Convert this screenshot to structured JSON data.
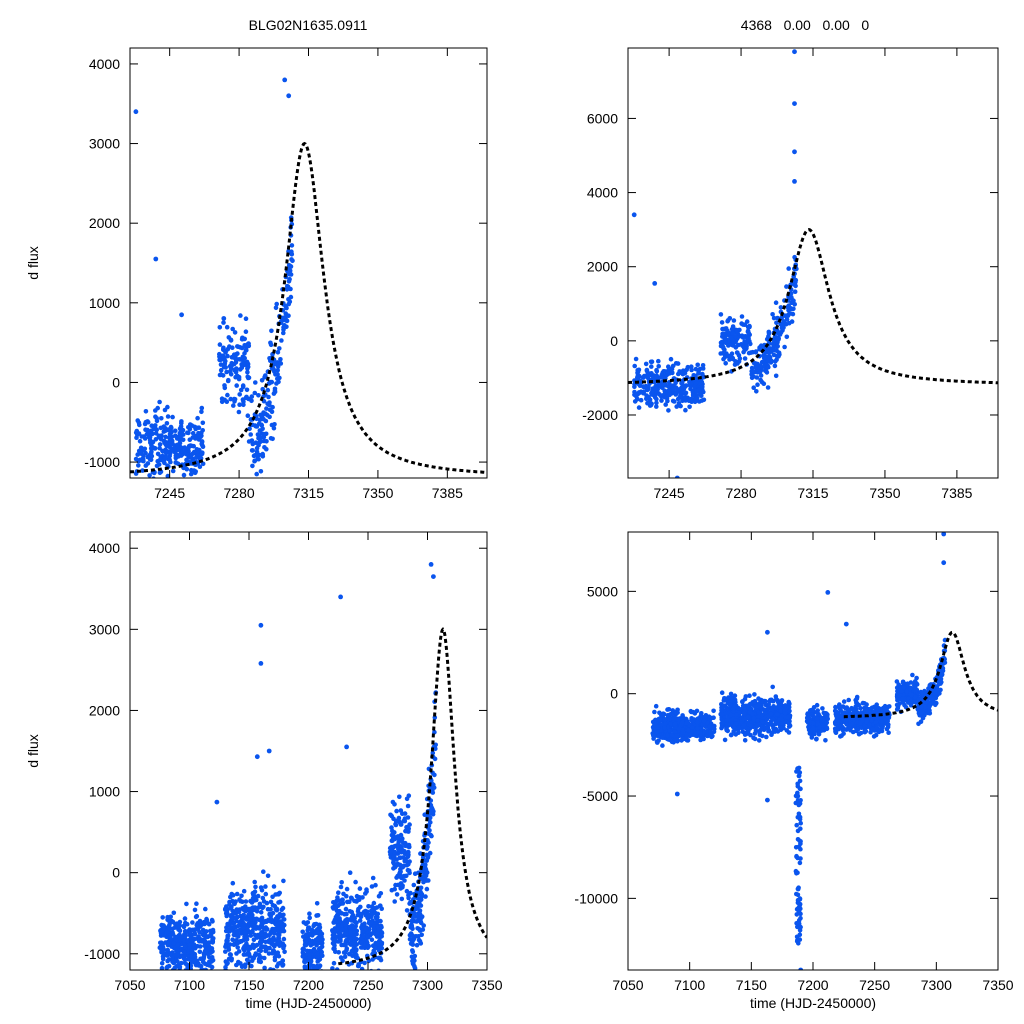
{
  "figure": {
    "title_left": "BLG02N1635.0911",
    "title_right": "4368   0.00   0.00   0"
  },
  "chart_data": [
    {
      "name": "top-left",
      "type": "scatter",
      "xlabel": "",
      "ylabel": "d flux",
      "xlim": [
        7225,
        7405
      ],
      "ylim": [
        -1200,
        4200
      ],
      "xticks": [
        7245,
        7280,
        7315,
        7350,
        7385
      ],
      "yticks": [
        -1000,
        0,
        1000,
        2000,
        3000,
        4000
      ],
      "model": {
        "t0": 7313,
        "sigma": 11.5,
        "width": 12,
        "amp": 4200,
        "base": -1200,
        "t_start": 7225,
        "t_end": 7405
      },
      "observations": [
        {
          "t": 7228,
          "flux": 3400
        },
        {
          "t": 7238,
          "flux": 1550
        },
        {
          "t": 7251,
          "flux": 850
        },
        {
          "t": 7303,
          "flux": 3800
        },
        {
          "t": 7305,
          "flux": 3600
        }
      ],
      "seasons": [
        {
          "t1": 7228,
          "t2": 7262,
          "flux": -800,
          "spread": 400
        },
        {
          "t1": 7270,
          "t2": 7293,
          "flux": 200,
          "spread": 550
        },
        {
          "t1": 7293,
          "t2": 7307,
          "flux": 1800,
          "spread": 600
        }
      ]
    },
    {
      "name": "top-right",
      "type": "scatter",
      "xlabel": "",
      "ylabel": "",
      "xlim": [
        7225,
        7405
      ],
      "ylim": [
        -3700,
        7900
      ],
      "xticks": [
        7245,
        7280,
        7315,
        7350,
        7385
      ],
      "yticks": [
        -2000,
        0,
        2000,
        4000,
        6000
      ],
      "model": {
        "t0": 7313,
        "sigma": 11.5,
        "width": 12,
        "amp": 4200,
        "base": -1200,
        "t_start": 7225,
        "t_end": 7405
      },
      "observations": [
        {
          "t": 7228,
          "flux": 3400
        },
        {
          "t": 7238,
          "flux": 1550
        },
        {
          "t": 7306,
          "flux": 7800
        },
        {
          "t": 7306,
          "flux": 6400
        },
        {
          "t": 7306,
          "flux": 5100
        },
        {
          "t": 7306,
          "flux": 4300
        },
        {
          "t": 7249,
          "flux": -3700
        }
      ],
      "seasons": [
        {
          "t1": 7228,
          "t2": 7262,
          "flux": -1200,
          "spread": 550
        },
        {
          "t1": 7270,
          "t2": 7293,
          "flux": 0,
          "spread": 600
        },
        {
          "t1": 7293,
          "t2": 7307,
          "flux": 1800,
          "spread": 700
        }
      ]
    },
    {
      "name": "bottom-left",
      "type": "scatter",
      "xlabel": "time (HJD-2450000)",
      "ylabel": "d flux",
      "xlim": [
        7050,
        7350
      ],
      "ylim": [
        -1200,
        4200
      ],
      "xticks": [
        7050,
        7100,
        7150,
        7200,
        7250,
        7300,
        7350
      ],
      "yticks": [
        -1000,
        0,
        1000,
        2000,
        3000,
        4000
      ],
      "model": {
        "t0": 7313,
        "sigma": 11.5,
        "width": 12,
        "amp": 4200,
        "base": -1200,
        "t_start": 7225,
        "t_end": 7350
      },
      "observations": [
        {
          "t": 7160,
          "flux": 3050
        },
        {
          "t": 7160,
          "flux": 2580
        },
        {
          "t": 7227,
          "flux": 3400
        },
        {
          "t": 7157,
          "flux": 1430
        },
        {
          "t": 7167,
          "flux": 1500
        },
        {
          "t": 7123,
          "flux": 870
        },
        {
          "t": 7232,
          "flux": 1550
        },
        {
          "t": 7303,
          "flux": 3800
        },
        {
          "t": 7305,
          "flux": 3650
        }
      ],
      "seasons": [
        {
          "t1": 7075,
          "t2": 7120,
          "flux": -900,
          "spread": 350
        },
        {
          "t1": 7130,
          "t2": 7180,
          "flux": -700,
          "spread": 500
        },
        {
          "t1": 7195,
          "t2": 7212,
          "flux": -900,
          "spread": 350
        },
        {
          "t1": 7220,
          "t2": 7262,
          "flux": -700,
          "spread": 450
        },
        {
          "t1": 7268,
          "t2": 7293,
          "flux": 300,
          "spread": 550
        },
        {
          "t1": 7293,
          "t2": 7307,
          "flux": 1800,
          "spread": 650
        }
      ]
    },
    {
      "name": "bottom-right",
      "type": "scatter",
      "xlabel": "time (HJD-2450000)",
      "ylabel": "",
      "xlim": [
        7050,
        7350
      ],
      "ylim": [
        -13500,
        7900
      ],
      "xticks": [
        7050,
        7100,
        7150,
        7200,
        7250,
        7300,
        7350
      ],
      "yticks": [
        -10000,
        -5000,
        0,
        5000
      ],
      "model": {
        "t0": 7313,
        "sigma": 11.5,
        "width": 12,
        "amp": 4200,
        "base": -1200,
        "t_start": 7225,
        "t_end": 7350
      },
      "observations": [
        {
          "t": 7163,
          "flux": 3000
        },
        {
          "t": 7212,
          "flux": 4950
        },
        {
          "t": 7227,
          "flux": 3400
        },
        {
          "t": 7163,
          "flux": -5200
        },
        {
          "t": 7090,
          "flux": -4900
        },
        {
          "t": 7190,
          "flux": -13500
        },
        {
          "t": 7306,
          "flux": 7800
        },
        {
          "t": 7306,
          "flux": 6400
        }
      ],
      "seasons": [
        {
          "t1": 7070,
          "t2": 7120,
          "flux": -1600,
          "spread": 650
        },
        {
          "t1": 7125,
          "t2": 7182,
          "flux": -1100,
          "spread": 900
        },
        {
          "t1": 7195,
          "t2": 7212,
          "flux": -1400,
          "spread": 700
        },
        {
          "t1": 7218,
          "t2": 7262,
          "flux": -1200,
          "spread": 700
        },
        {
          "t1": 7268,
          "t2": 7293,
          "flux": 0,
          "spread": 650
        },
        {
          "t1": 7293,
          "t2": 7307,
          "flux": 1800,
          "spread": 700
        }
      ],
      "dips": [
        {
          "t": 7188,
          "flux_from": -3600,
          "flux_to": -12200
        }
      ]
    }
  ]
}
